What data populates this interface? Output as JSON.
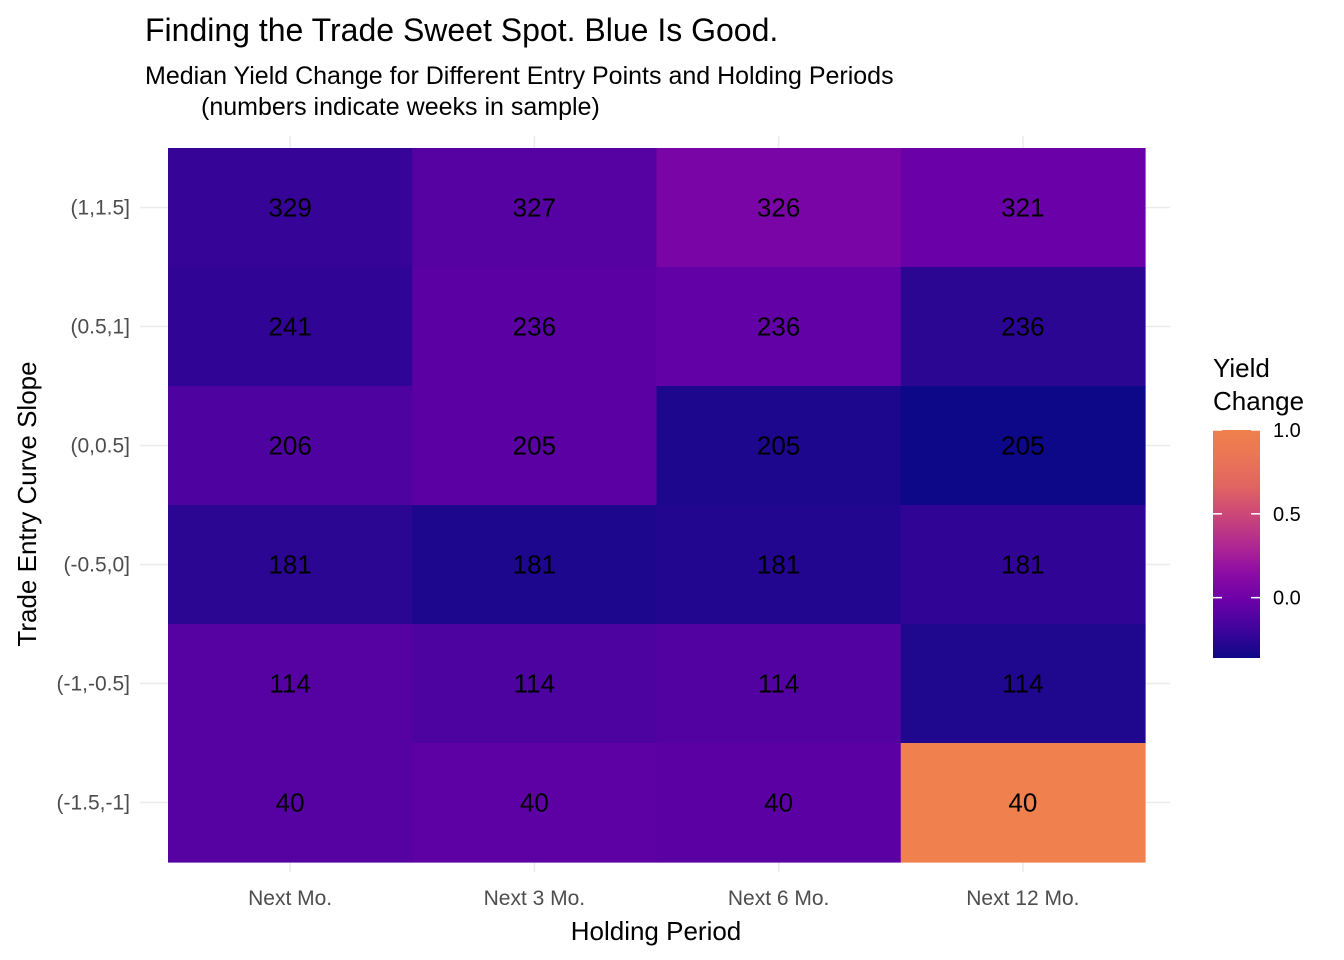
{
  "chart_data": {
    "type": "heatmap",
    "title": "Finding the Trade Sweet Spot. Blue Is Good.",
    "subtitle_line1": "Median Yield Change for Different Entry Points and Holding Periods",
    "subtitle_line2": "(numbers indicate weeks in sample)",
    "xlabel": "Holding Period",
    "ylabel": "Trade Entry Curve Slope",
    "x_categories": [
      "Next Mo.",
      "Next 3 Mo.",
      "Next 6 Mo.",
      "Next 12 Mo."
    ],
    "y_categories": [
      "(1,1.5]",
      "(0.5,1]",
      "(0,0.5]",
      "(-0.5,0]",
      "(-1,-0.5]",
      "(-1.5,-1]"
    ],
    "values": [
      [
        -0.22,
        -0.1,
        0.05,
        -0.02
      ],
      [
        -0.24,
        -0.08,
        -0.05,
        -0.26
      ],
      [
        -0.13,
        -0.08,
        -0.31,
        -0.36
      ],
      [
        -0.26,
        -0.31,
        -0.29,
        -0.24
      ],
      [
        -0.1,
        -0.14,
        -0.11,
        -0.3
      ],
      [
        -0.1,
        -0.07,
        -0.08,
        1.0
      ]
    ],
    "counts": [
      [
        329,
        327,
        326,
        321
      ],
      [
        241,
        236,
        236,
        236
      ],
      [
        206,
        205,
        205,
        205
      ],
      [
        181,
        181,
        181,
        181
      ],
      [
        114,
        114,
        114,
        114
      ],
      [
        40,
        40,
        40,
        40
      ]
    ],
    "legend": {
      "title_line1": "Yield",
      "title_line2": "Change",
      "ticks": [
        0.0,
        0.5,
        1.0
      ],
      "tick_labels": [
        "0.0",
        "0.5",
        "1.0"
      ],
      "min": -0.36,
      "max": 1.0,
      "position": "right"
    },
    "grid": true,
    "colors": {
      "low": "#0d0887",
      "mid_low": "#6a00a8",
      "mid": "#b12a90",
      "mid_high": "#e16462",
      "high": "#f0804d"
    }
  }
}
